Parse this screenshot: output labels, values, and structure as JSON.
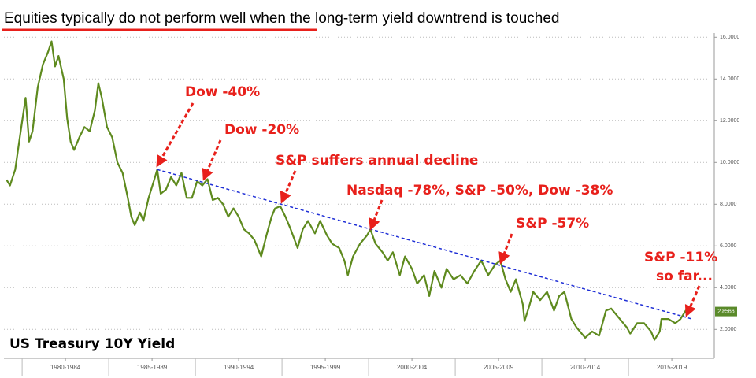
{
  "chart_data": {
    "type": "line",
    "title": "Equities typically do not perform well when the long-term yield downtrend is touched",
    "label": "US Treasury 10Y Yield",
    "annotations": [
      "Dow -40%",
      "Dow -20%",
      "S&P suffers annual decline",
      "Nasdaq -78%, S&P -50%, Dow -38%",
      "S&P -57%",
      "S&P -11%",
      "so far..."
    ],
    "xlim": [
      1978.95,
      2019.86
    ],
    "xticks": [
      {
        "value": 1982.5,
        "label": "1980-1984"
      },
      {
        "value": 1987.5,
        "label": "1985-1989"
      },
      {
        "value": 1992.5,
        "label": "1990-1994"
      },
      {
        "value": 1997.5,
        "label": "1995-1999"
      },
      {
        "value": 2002.5,
        "label": "2000-2004"
      },
      {
        "value": 2007.5,
        "label": "2005-2009"
      },
      {
        "value": 2012.5,
        "label": "2010-2014"
      },
      {
        "value": 2017.5,
        "label": "2015-2019"
      }
    ],
    "ylim": [
      1,
      16.2
    ],
    "yticks": [
      {
        "value": 2,
        "label": "2.0000"
      },
      {
        "value": 4,
        "label": "4.0000"
      },
      {
        "value": 6,
        "label": "6.0000"
      },
      {
        "value": 8,
        "label": "8.0000"
      },
      {
        "value": 10,
        "label": "10.0000"
      },
      {
        "value": 12,
        "label": "12.0000"
      },
      {
        "value": 14,
        "label": "14.0000"
      },
      {
        "value": 16,
        "label": "16.0000"
      }
    ],
    "grid": true,
    "last_value": 2.8566,
    "last_value_color": "#5a8a2a",
    "series": [
      {
        "color": "#5e8a1e",
        "x": [
          1979.1,
          1979.3,
          1979.6,
          1979.9,
          1980.2,
          1980.4,
          1980.6,
          1980.9,
          1981.2,
          1981.5,
          1981.7,
          1981.9,
          1982.1,
          1982.4,
          1982.6,
          1982.8,
          1983.0,
          1983.3,
          1983.6,
          1983.9,
          1984.2,
          1984.4,
          1984.6,
          1984.9,
          1985.2,
          1985.5,
          1985.8,
          1986.1,
          1986.3,
          1986.5,
          1986.8,
          1987.0,
          1987.3,
          1987.6,
          1987.8,
          1988.0,
          1988.3,
          1988.6,
          1988.9,
          1989.2,
          1989.5,
          1989.8,
          1990.1,
          1990.4,
          1990.7,
          1991.0,
          1991.3,
          1991.6,
          1991.9,
          1992.2,
          1992.5,
          1992.8,
          1993.1,
          1993.4,
          1993.8,
          1994.1,
          1994.4,
          1994.6,
          1994.9,
          1995.2,
          1995.5,
          1995.9,
          1996.2,
          1996.5,
          1996.9,
          1997.2,
          1997.6,
          1997.9,
          1998.3,
          1998.6,
          1998.8,
          1999.1,
          1999.5,
          1999.9,
          2000.1,
          2000.4,
          2000.8,
          2001.1,
          2001.4,
          2001.8,
          2002.1,
          2002.5,
          2002.8,
          2003.2,
          2003.5,
          2003.8,
          2004.2,
          2004.5,
          2004.9,
          2005.3,
          2005.7,
          2006.1,
          2006.5,
          2006.9,
          2007.3,
          2007.6,
          2007.9,
          2008.2,
          2008.5,
          2008.9,
          2009.0,
          2009.3,
          2009.5,
          2009.9,
          2010.3,
          2010.7,
          2011.0,
          2011.3,
          2011.7,
          2012.0,
          2012.5,
          2012.9,
          2013.3,
          2013.7,
          2014.0,
          2014.5,
          2014.9,
          2015.1,
          2015.5,
          2015.9,
          2016.3,
          2016.5,
          2016.8,
          2016.9,
          2017.3,
          2017.7,
          2018.0,
          2018.3,
          2018.5
        ],
        "values": [
          9.17,
          8.9,
          9.66,
          11.4,
          13.1,
          11.0,
          11.5,
          13.6,
          14.7,
          15.3,
          15.8,
          14.6,
          15.1,
          14.0,
          12.1,
          11.0,
          10.6,
          11.2,
          11.7,
          11.5,
          12.5,
          13.8,
          13.1,
          11.7,
          11.2,
          10.0,
          9.5,
          8.3,
          7.4,
          7.0,
          7.6,
          7.2,
          8.3,
          9.1,
          9.66,
          8.5,
          8.7,
          9.3,
          8.9,
          9.5,
          8.3,
          8.3,
          9.1,
          8.9,
          9.2,
          8.2,
          8.3,
          8.0,
          7.4,
          7.8,
          7.4,
          6.8,
          6.6,
          6.3,
          5.5,
          6.5,
          7.4,
          7.8,
          7.9,
          7.4,
          6.8,
          5.9,
          6.8,
          7.2,
          6.6,
          7.2,
          6.5,
          6.1,
          5.9,
          5.3,
          4.6,
          5.5,
          6.1,
          6.5,
          6.8,
          6.1,
          5.7,
          5.3,
          5.7,
          4.6,
          5.5,
          4.9,
          4.2,
          4.6,
          3.6,
          4.8,
          4.0,
          4.9,
          4.4,
          4.6,
          4.2,
          4.8,
          5.3,
          4.6,
          5.1,
          5.3,
          4.4,
          3.8,
          4.4,
          3.2,
          2.4,
          3.2,
          3.8,
          3.4,
          3.8,
          2.9,
          3.6,
          3.8,
          2.5,
          2.1,
          1.6,
          1.9,
          1.7,
          2.9,
          3.0,
          2.5,
          2.1,
          1.8,
          2.3,
          2.3,
          1.9,
          1.5,
          1.9,
          2.5,
          2.5,
          2.3,
          2.5,
          2.9,
          2.86
        ]
      }
    ],
    "trendline": {
      "color": "#1f2fd6",
      "x": [
        1987.8,
        2018.7
      ],
      "values": [
        9.66,
        2.49
      ]
    }
  }
}
